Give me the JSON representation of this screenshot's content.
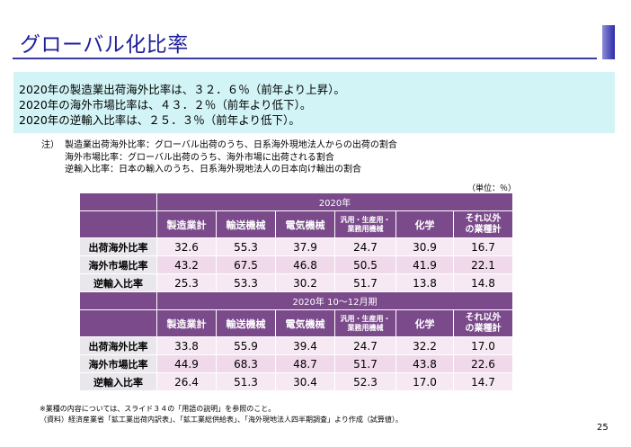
{
  "title": "グローバル化比率",
  "summary": [
    "2020年の製造業出荷海外比率は、３２．６％（前年より上昇）。",
    "2020年の海外市場比率は、４３．２％（前年より低下）。",
    "2020年の逆輸入比率は、２５．３％（前年より低下）。"
  ],
  "notes": {
    "label": "注）",
    "lines": [
      "製造業出荷海外比率：グローバル出荷のうち、日系海外現地法人からの出荷の割合",
      "海外市場比率：グローバル出荷のうち、海外市場に出荷される割合",
      "逆輸入比率：日本の輸入のうち、日系海外現地法人の日本向け輸出の割合"
    ]
  },
  "unit": "（単位：％）",
  "columns": [
    "製造業計",
    "輸送機械",
    "電気機械",
    "汎用・生産用・業務用機械",
    "化学",
    "それ以外の業種計"
  ],
  "column_lines": {
    "general_l1": "汎用・生産用・",
    "general_l2": "業務用機械",
    "other_l1": "それ以外",
    "other_l2": "の業種計"
  },
  "tables": [
    {
      "period": "2020年",
      "rows": [
        {
          "label": "出荷海外比率",
          "values": [
            "32.6",
            "55.3",
            "37.9",
            "24.7",
            "30.9",
            "16.7"
          ]
        },
        {
          "label": "海外市場比率",
          "values": [
            "43.2",
            "67.5",
            "46.8",
            "50.5",
            "41.9",
            "22.1"
          ]
        },
        {
          "label": "逆輸入比率",
          "values": [
            "25.3",
            "53.3",
            "30.2",
            "51.7",
            "13.8",
            "14.8"
          ]
        }
      ]
    },
    {
      "period": "2020年 10～12月期",
      "rows": [
        {
          "label": "出荷海外比率",
          "values": [
            "33.8",
            "55.9",
            "39.4",
            "24.7",
            "32.2",
            "17.0"
          ]
        },
        {
          "label": "海外市場比率",
          "values": [
            "44.9",
            "68.3",
            "48.7",
            "51.7",
            "43.8",
            "22.6"
          ]
        },
        {
          "label": "逆輸入比率",
          "values": [
            "26.4",
            "51.3",
            "30.4",
            "52.3",
            "17.0",
            "14.7"
          ]
        }
      ]
    }
  ],
  "footer": [
    "※業種の内容については、スライド３４の「用語の説明」を参照のこと。",
    "（資料）経済産業省「鉱工業出荷内訳表」、「鉱工業総供給表」、「海外現地法人四半期調査」より作成（試算値）。"
  ],
  "page_number": "25",
  "colors": {
    "title": "#1f1f9a",
    "summary_bg": "#d2f4f6",
    "table_header": "#7a4a8a",
    "row_label_bg": "#e9e7ec",
    "value_bg_light": "#f7e9f3",
    "value_bg_dark": "#efd9ea"
  }
}
